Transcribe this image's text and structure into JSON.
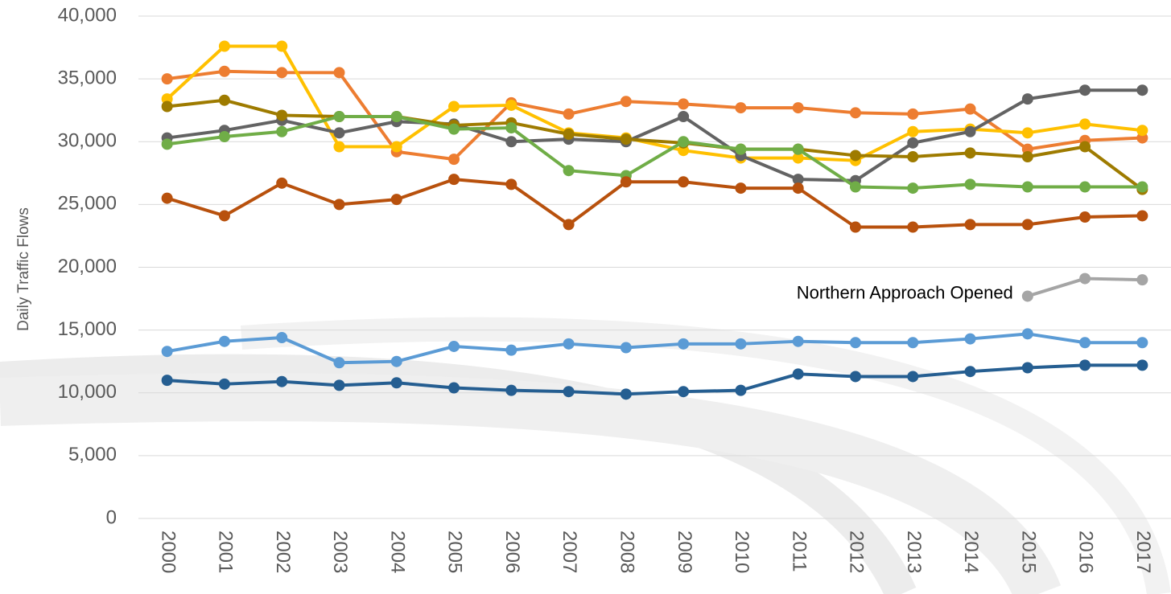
{
  "chart_data": {
    "type": "line",
    "y_label": "Daily Traffic Flows",
    "annotation": "Northern Approach Opened",
    "categories": [
      "2000",
      "2001",
      "2002",
      "2003",
      "2004",
      "2005",
      "2006",
      "2007",
      "2008",
      "2009",
      "2010",
      "2011",
      "2012",
      "2013",
      "2014",
      "2015",
      "2016",
      "2017"
    ],
    "ylim": [
      0,
      40000
    ],
    "yticks": [
      0,
      {
        "value": 5000,
        "label": "5,000"
      },
      {
        "value": 10000,
        "label": "10,000"
      },
      {
        "value": 15000,
        "label": "15,000"
      },
      {
        "value": 20000,
        "label": "20,000"
      },
      {
        "value": 25000,
        "label": "25,000"
      },
      {
        "value": 30000,
        "label": "30,000"
      },
      {
        "value": 35000,
        "label": "35,000"
      },
      {
        "value": 40000,
        "label": "40,000"
      }
    ],
    "grid": true,
    "series": [
      {
        "color": "#ED7D31",
        "values": [
          35000,
          35600,
          35500,
          35500,
          29200,
          28600,
          33100,
          32200,
          33200,
          33000,
          32700,
          32700,
          32300,
          32200,
          32600,
          29400,
          30100,
          30300
        ]
      },
      {
        "color": "#FFC000",
        "values": [
          33400,
          37600,
          37600,
          29600,
          29600,
          32800,
          32900,
          30700,
          30300,
          29300,
          28700,
          28700,
          28500,
          30800,
          31000,
          30700,
          31400,
          30900
        ]
      },
      {
        "color": "#636363",
        "values": [
          30300,
          30900,
          31700,
          30700,
          31600,
          31400,
          30000,
          30200,
          30000,
          32000,
          28900,
          27000,
          26900,
          29900,
          30800,
          33400,
          34100,
          34100
        ]
      },
      {
        "color": "#9E7B00",
        "values": [
          32800,
          33300,
          32100,
          32000,
          32000,
          31300,
          31500,
          30600,
          30200,
          29900,
          29400,
          29400,
          28900,
          28800,
          29100,
          28800,
          29600,
          26200
        ]
      },
      {
        "color": "#70AD47",
        "values": [
          29800,
          30400,
          30800,
          32000,
          32000,
          31000,
          31100,
          27700,
          27300,
          30000,
          29400,
          29400,
          26400,
          26300,
          26600,
          26400,
          26400,
          26400
        ]
      },
      {
        "color": "#B8510D",
        "values": [
          25500,
          24100,
          26700,
          25000,
          25400,
          27000,
          26600,
          23400,
          26800,
          26800,
          26300,
          26300,
          23200,
          23200,
          23400,
          23400,
          24000,
          24100
        ]
      },
      {
        "color": "#A5A5A5",
        "values": [
          null,
          null,
          null,
          null,
          null,
          null,
          null,
          null,
          null,
          null,
          null,
          null,
          null,
          null,
          null,
          17700,
          19100,
          19000
        ]
      },
      {
        "color": "#5B9BD5",
        "values": [
          13300,
          14100,
          14400,
          12400,
          12500,
          13700,
          13400,
          13900,
          13600,
          13900,
          13900,
          14100,
          14000,
          14000,
          14300,
          14700,
          14000,
          14000
        ]
      },
      {
        "color": "#255E91",
        "values": [
          11000,
          10700,
          10900,
          10600,
          10800,
          10400,
          10200,
          10100,
          9900,
          10100,
          10200,
          11500,
          11300,
          11300,
          11700,
          12000,
          12200,
          12200
        ]
      }
    ]
  }
}
